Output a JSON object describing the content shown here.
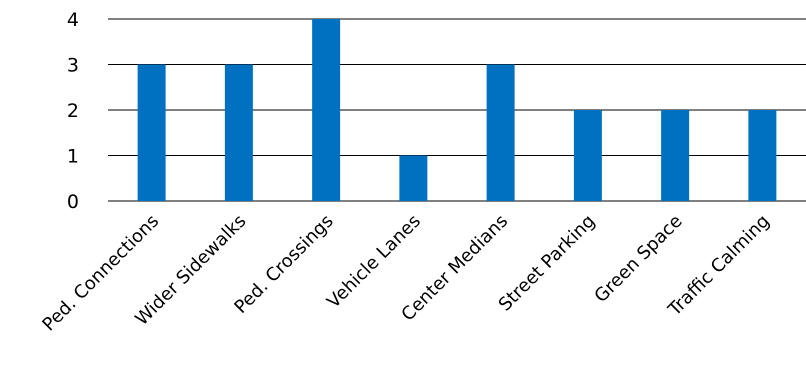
{
  "chart_data": {
    "type": "bar",
    "categories": [
      "Ped. Connections",
      "Wider Sidewalks",
      "Ped. Crossings",
      "Vehicle Lanes",
      "Center Medians",
      "Street Parking",
      "Green Space",
      "Traffic Calming"
    ],
    "values": [
      3,
      3,
      4,
      1,
      3,
      2,
      2,
      2
    ],
    "title": "",
    "xlabel": "",
    "ylabel": "",
    "ylim": [
      0,
      4
    ],
    "yticks": [
      "0",
      "1",
      "2",
      "3",
      "4"
    ],
    "grid": true,
    "legend": "none",
    "bar_color": "#0070C0",
    "grid_color": "#000000"
  }
}
